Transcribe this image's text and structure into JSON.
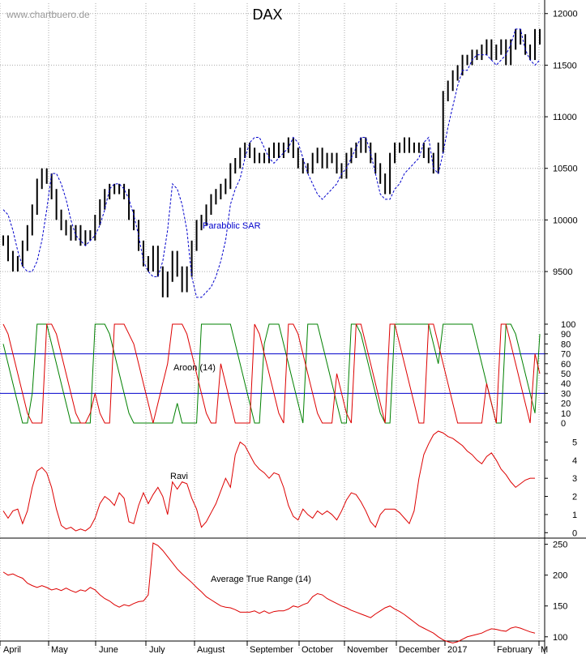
{
  "watermark": "www.chartbuero.de",
  "title": "DAX",
  "colors": {
    "price": "#000000",
    "sar": "#0000cc",
    "aroon_up": "#008000",
    "aroon_down": "#dd0000",
    "ravi": "#dd0000",
    "atr": "#dd0000",
    "guide": "#0000cc",
    "grid": "#aaaaaa"
  },
  "x_axis": {
    "labels": [
      "April",
      "May",
      "June",
      "July",
      "August",
      "September",
      "October",
      "November",
      "December",
      "2017",
      "February",
      "M"
    ]
  },
  "chart_data": [
    {
      "type": "line",
      "subtype": "ohlc-bars",
      "title": "DAX",
      "ylim": [
        9100,
        12100
      ],
      "yticks": [
        9500,
        10000,
        10500,
        11000,
        11500,
        12000
      ],
      "grid": true,
      "series": [
        {
          "name": "",
          "kind": "price",
          "values": [
            9800,
            9650,
            9550,
            9600,
            9750,
            9900,
            10100,
            10350,
            10450,
            10400,
            10250,
            10050,
            9950,
            9900,
            9850,
            9900,
            9800,
            9850,
            9850,
            10000,
            10150,
            10250,
            10300,
            10300,
            10300,
            10250,
            10050,
            9950,
            9750,
            9600,
            9550,
            9700,
            9500,
            9300,
            9450,
            9650,
            9500,
            9350,
            9500,
            9750,
            9950,
            10000,
            10100,
            10200,
            10250,
            10300,
            10350,
            10500,
            10550,
            10650,
            10700,
            10650,
            10600,
            10600,
            10600,
            10650,
            10700,
            10650,
            10700,
            10750,
            10650,
            10550,
            10500,
            10500,
            10600,
            10650,
            10550,
            10600,
            10600,
            10500,
            10450,
            10600,
            10650,
            10700,
            10750,
            10700,
            10600,
            10500,
            10400,
            10300,
            10600,
            10700,
            10700,
            10750,
            10700,
            10700,
            10700,
            10650,
            10600,
            10500,
            10700,
            11200,
            11300,
            11400,
            11450,
            11550,
            11550,
            11600,
            11600,
            11650,
            11700,
            11600,
            11650,
            11700,
            11550,
            11700,
            11800,
            11750,
            11650,
            11600,
            11800,
            11750
          ]
        },
        {
          "name": "Parabolic SAR",
          "kind": "sar",
          "values": [
            10100,
            10050,
            9900,
            9700,
            9550,
            9500,
            9500,
            9600,
            9800,
            10100,
            10450,
            10450,
            10350,
            10200,
            10000,
            9850,
            9800,
            9750,
            9800,
            9850,
            9950,
            10100,
            10300,
            10350,
            10350,
            10300,
            10200,
            10050,
            9850,
            9600,
            9500,
            9450,
            9450,
            9600,
            9900,
            10350,
            10300,
            10150,
            9900,
            9450,
            9250,
            9250,
            9300,
            9350,
            9450,
            9600,
            9800,
            10150,
            10300,
            10400,
            10600,
            10750,
            10800,
            10800,
            10700,
            10600,
            10550,
            10600,
            10650,
            10700,
            10800,
            10750,
            10600,
            10450,
            10350,
            10250,
            10200,
            10250,
            10300,
            10350,
            10450,
            10500,
            10600,
            10700,
            10800,
            10800,
            10650,
            10450,
            10250,
            10200,
            10200,
            10300,
            10350,
            10450,
            10500,
            10550,
            10600,
            10750,
            10800,
            10500,
            10450,
            10650,
            10900,
            11100,
            11300,
            11450,
            11450,
            11550,
            11600,
            11600,
            11600,
            11550,
            11500,
            11550,
            11600,
            11700,
            11850,
            11850,
            11650,
            11550,
            11500,
            11550
          ]
        }
      ]
    },
    {
      "type": "line",
      "title": "Aroon (14)",
      "ylim": [
        0,
        100
      ],
      "yticks": [
        0,
        10,
        20,
        30,
        40,
        50,
        60,
        70,
        80,
        90,
        100
      ],
      "guides": [
        30,
        70
      ],
      "series": [
        {
          "name": "",
          "kind": "aroon_up",
          "values": [
            80,
            60,
            40,
            20,
            0,
            0,
            30,
            100,
            100,
            100,
            80,
            60,
            40,
            20,
            0,
            0,
            0,
            0,
            0,
            100,
            100,
            100,
            90,
            70,
            50,
            30,
            10,
            0,
            0,
            0,
            0,
            0,
            0,
            0,
            0,
            0,
            20,
            0,
            0,
            0,
            0,
            100,
            100,
            100,
            100,
            100,
            100,
            100,
            80,
            60,
            40,
            20,
            0,
            0,
            80,
            100,
            100,
            100,
            80,
            60,
            40,
            20,
            0,
            100,
            100,
            100,
            80,
            60,
            40,
            20,
            0,
            0,
            100,
            100,
            90,
            70,
            50,
            30,
            10,
            0,
            0,
            100,
            100,
            100,
            100,
            100,
            100,
            100,
            100,
            80,
            60,
            100,
            100,
            100,
            100,
            100,
            100,
            100,
            80,
            60,
            40,
            20,
            0,
            0,
            100,
            100,
            90,
            70,
            50,
            30,
            10,
            90
          ]
        },
        {
          "name": "",
          "kind": "aroon_down",
          "values": [
            100,
            90,
            70,
            50,
            30,
            10,
            0,
            0,
            0,
            100,
            100,
            90,
            70,
            50,
            30,
            10,
            0,
            0,
            10,
            30,
            10,
            0,
            0,
            100,
            100,
            100,
            90,
            80,
            60,
            40,
            20,
            0,
            20,
            40,
            60,
            100,
            100,
            100,
            90,
            70,
            50,
            30,
            10,
            0,
            0,
            60,
            40,
            20,
            0,
            0,
            0,
            0,
            100,
            90,
            70,
            50,
            30,
            10,
            0,
            100,
            100,
            90,
            70,
            50,
            30,
            10,
            0,
            0,
            0,
            50,
            30,
            10,
            0,
            100,
            100,
            80,
            60,
            40,
            20,
            0,
            100,
            100,
            80,
            60,
            40,
            20,
            0,
            0,
            100,
            100,
            80,
            60,
            40,
            20,
            0,
            0,
            0,
            0,
            0,
            0,
            40,
            20,
            0,
            100,
            100,
            80,
            60,
            40,
            20,
            0,
            70,
            50
          ]
        }
      ]
    },
    {
      "type": "line",
      "title": "Ravi",
      "ylim": [
        -0.3,
        5.6
      ],
      "yticks": [
        0,
        1,
        2,
        3,
        4,
        5
      ],
      "series": [
        {
          "name": "",
          "kind": "ravi",
          "values": [
            1.2,
            0.8,
            1.2,
            1.3,
            0.5,
            1.2,
            2.5,
            3.4,
            3.6,
            3.3,
            2.5,
            1.3,
            0.4,
            0.2,
            0.3,
            0.1,
            0.2,
            0.1,
            0.3,
            0.8,
            1.6,
            2.0,
            1.8,
            1.5,
            2.2,
            1.9,
            0.6,
            0.5,
            1.5,
            2.2,
            1.6,
            2.1,
            2.5,
            2.0,
            1.0,
            2.8,
            2.4,
            2.8,
            2.7,
            1.9,
            1.3,
            0.3,
            0.6,
            1.1,
            1.6,
            2.3,
            3.0,
            2.5,
            4.3,
            5.0,
            4.8,
            4.3,
            3.8,
            3.5,
            3.3,
            3.0,
            3.3,
            3.2,
            2.5,
            1.5,
            0.9,
            0.7,
            1.3,
            1.0,
            0.8,
            1.2,
            1.0,
            1.2,
            1.0,
            0.7,
            1.2,
            1.8,
            2.2,
            2.1,
            1.7,
            1.2,
            0.6,
            0.3,
            1.0,
            1.3,
            1.3,
            1.3,
            1.1,
            0.8,
            0.5,
            1.2,
            3.0,
            4.3,
            4.9,
            5.4,
            5.6,
            5.5,
            5.3,
            5.2,
            5.0,
            4.8,
            4.5,
            4.3,
            4.0,
            3.8,
            4.2,
            4.4,
            4.0,
            3.5,
            3.2,
            2.8,
            2.5,
            2.7,
            2.9,
            3.0,
            3.0
          ]
        }
      ]
    },
    {
      "type": "line",
      "title": "Average True Range (14)",
      "ylim": [
        80,
        260
      ],
      "yticks": [
        100,
        150,
        200,
        250
      ],
      "series": [
        {
          "name": "",
          "kind": "atr",
          "values": [
            205,
            200,
            202,
            198,
            195,
            187,
            183,
            180,
            183,
            180,
            176,
            178,
            175,
            179,
            175,
            172,
            176,
            174,
            180,
            176,
            168,
            162,
            158,
            152,
            148,
            152,
            150,
            154,
            157,
            158,
            168,
            252,
            248,
            240,
            230,
            220,
            210,
            202,
            195,
            188,
            180,
            173,
            165,
            160,
            155,
            150,
            148,
            147,
            144,
            140,
            140,
            140,
            142,
            138,
            142,
            138,
            141,
            142,
            142,
            145,
            150,
            148,
            152,
            155,
            165,
            170,
            168,
            162,
            158,
            154,
            150,
            147,
            143,
            140,
            137,
            134,
            131,
            137,
            142,
            147,
            150,
            145,
            141,
            136,
            130,
            124,
            118,
            114,
            110,
            106,
            100,
            95,
            92,
            90,
            92,
            96,
            100,
            102,
            104,
            106,
            110,
            113,
            112,
            110,
            109,
            114,
            116,
            114,
            111,
            108,
            106
          ]
        }
      ]
    }
  ]
}
